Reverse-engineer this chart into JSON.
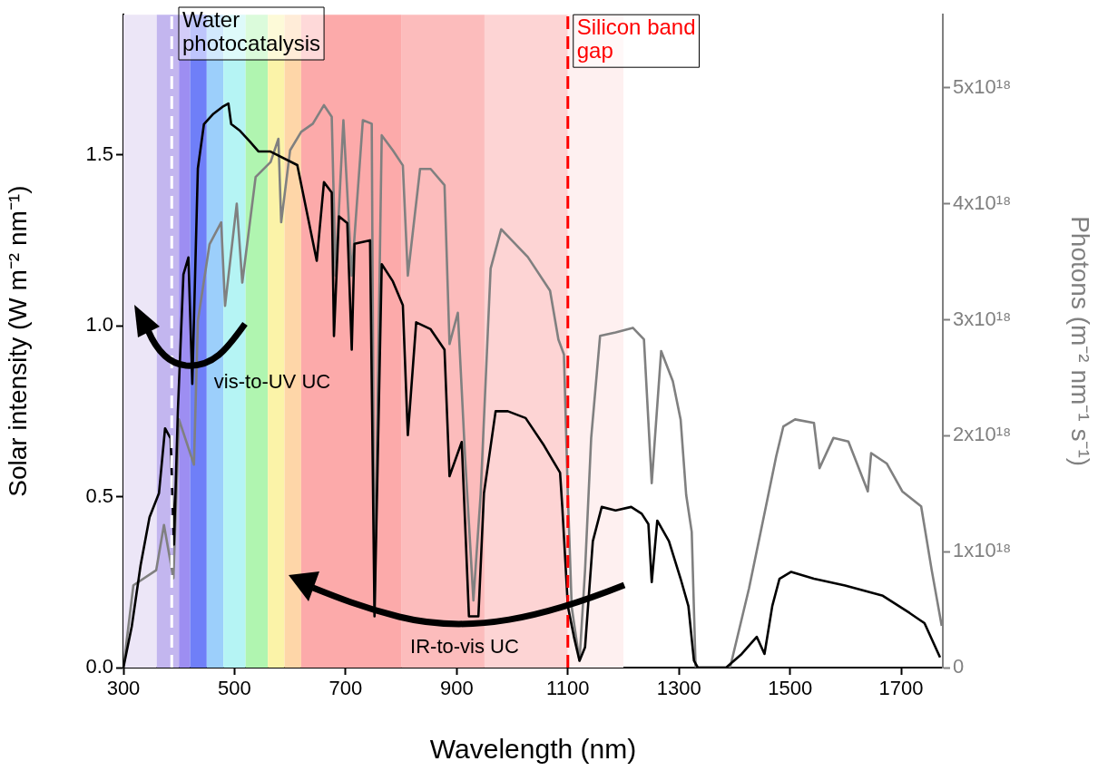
{
  "chart_data": {
    "type": "line",
    "xlabel": "Wavelength (nm)",
    "ylabel": "Solar intensity (W m⁻² nm⁻¹)",
    "y2label": "Photons (m⁻² nm⁻¹ s⁻¹)",
    "xlim": [
      300,
      1775
    ],
    "xticks": [
      300,
      500,
      700,
      900,
      1100,
      1300,
      1500,
      1700
    ],
    "ylim": [
      0,
      1.91
    ],
    "yticks": [
      {
        "value": 0,
        "label": "0.0"
      },
      0.5,
      {
        "value": 1,
        "label": "1.0"
      },
      1.5
    ],
    "y2lim": [
      0,
      5.63e+18
    ],
    "y2ticks": [
      0,
      {
        "value": 1e+18,
        "label": "1x10¹⁸"
      },
      {
        "value": 2e+18,
        "label": "2x10¹⁸"
      },
      {
        "value": 3e+18,
        "label": "3x10¹⁸"
      },
      {
        "value": 4e+18,
        "label": "4x10¹⁸"
      },
      {
        "value": 5e+18,
        "label": "5x10¹⁸"
      }
    ],
    "grid": false,
    "legend": false,
    "marker": "none",
    "line_style": "solid",
    "series": [
      {
        "color": "#000000",
        "x": [
          300,
          315,
          331,
          347,
          364,
          375,
          385,
          391,
          398,
          408,
          417,
          424,
          434,
          445,
          462,
          478,
          489,
          494,
          510,
          527,
          543,
          564,
          613,
          648,
          661,
          675,
          679,
          688,
          703,
          711,
          716,
          744,
          752,
          765,
          785,
          803,
          812,
          827,
          853,
          878,
          887,
          909,
          922,
          939,
          949,
          970,
          992,
          1024,
          1057,
          1086,
          1090,
          1100,
          1111,
          1121,
          1131,
          1145,
          1161,
          1186,
          1214,
          1233,
          1245,
          1251,
          1261,
          1282,
          1303,
          1317,
          1327,
          1334,
          1385,
          1413,
          1440,
          1454,
          1468,
          1481,
          1502,
          1543,
          1599,
          1667,
          1715,
          1742,
          1770
        ],
        "values": [
          0,
          0.12,
          0.3,
          0.44,
          0.51,
          0.7,
          0.67,
          0.36,
          0.75,
          1.15,
          1.2,
          0.83,
          1.46,
          1.59,
          1.62,
          1.64,
          1.65,
          1.59,
          1.57,
          1.54,
          1.51,
          1.51,
          1.47,
          1.19,
          1.42,
          1.39,
          0.97,
          1.32,
          1.3,
          0.93,
          1.24,
          1.25,
          0.15,
          1.18,
          1.13,
          1.06,
          0.68,
          1.01,
          0.99,
          0.93,
          0.56,
          0.66,
          0.15,
          0.15,
          0.51,
          0.75,
          0.75,
          0.73,
          0.65,
          0.57,
          0.47,
          0.18,
          0.09,
          0.02,
          0.06,
          0.37,
          0.47,
          0.46,
          0.47,
          0.45,
          0.42,
          0.25,
          0.43,
          0.37,
          0.26,
          0.18,
          0.02,
          0,
          0,
          0.04,
          0.09,
          0.04,
          0.18,
          0.26,
          0.28,
          0.26,
          0.24,
          0.21,
          0.16,
          0.13,
          0.03
        ]
      },
      {
        "color": "#808080",
        "axis": "y2",
        "x": [
          300,
          318,
          359,
          373,
          390,
          400,
          427,
          434,
          455,
          476,
          483,
          504,
          514,
          538,
          565,
          579,
          584,
          600,
          620,
          641,
          661,
          675,
          682,
          696,
          711,
          731,
          747,
          752,
          765,
          785,
          803,
          812,
          834,
          853,
          878,
          887,
          902,
          915,
          930,
          943,
          961,
          980,
          1028,
          1068,
          1083,
          1093,
          1100,
          1107,
          1121,
          1131,
          1142,
          1158,
          1186,
          1217,
          1237,
          1251,
          1268,
          1289,
          1303,
          1313,
          1323,
          1330,
          1392,
          1426,
          1454,
          1475,
          1488,
          1509,
          1543,
          1553,
          1578,
          1605,
          1640,
          1646,
          1674,
          1702,
          1736,
          1755,
          1773
        ],
        "values": [
          0,
          7.1e+17,
          8.4e+17,
          1.23e+18,
          7.7e+17,
          2.14e+18,
          1.75e+18,
          2.99e+18,
          3.65e+18,
          3.84e+18,
          3.12e+18,
          4e+18,
          3.32e+18,
          4.23e+18,
          4.36e+18,
          4.56e+18,
          3.84e+18,
          4.46e+18,
          4.62e+18,
          4.69e+18,
          4.85e+18,
          4.75e+18,
          3.38e+18,
          4.72e+18,
          3.38e+18,
          4.72e+18,
          4.69e+18,
          5.1e+17,
          4.59e+18,
          4.46e+18,
          4.33e+18,
          3.38e+18,
          4.3e+18,
          4.3e+18,
          4.16e+18,
          2.79e+18,
          3.06e+18,
          1.82e+18,
          5.8e+17,
          1.49e+18,
          3.44e+18,
          3.78e+18,
          3.54e+18,
          3.25e+18,
          2.83e+18,
          2.7e+18,
          1.49e+18,
          5.2e+17,
          6e+16,
          8.4e+17,
          1.98e+18,
          2.86e+18,
          2.89e+18,
          2.93e+18,
          2.83e+18,
          1.59e+18,
          2.73e+18,
          2.47e+18,
          2.14e+18,
          1.49e+18,
          1.17e+18,
          0,
          0,
          6.8e+17,
          1.33e+18,
          1.82e+18,
          2.08e+18,
          2.14e+18,
          2.11e+18,
          1.72e+18,
          1.98e+18,
          1.95e+18,
          1.52e+18,
          1.85e+18,
          1.76e+18,
          1.52e+18,
          1.39e+18,
          8.4e+17,
          3.6e+17
        ]
      }
    ],
    "bands": [
      {
        "axis": "x",
        "from": 300,
        "to": 360,
        "color": "#ece6f7"
      },
      {
        "axis": "x",
        "from": 360,
        "to": 400,
        "color": "#c3b6ef"
      },
      {
        "axis": "x",
        "from": 400,
        "to": 420,
        "color": "#9d8ef2"
      },
      {
        "axis": "x",
        "from": 420,
        "to": 450,
        "color": "#6f7ff8"
      },
      {
        "axis": "x",
        "from": 450,
        "to": 480,
        "color": "#9ccffb"
      },
      {
        "axis": "x",
        "from": 480,
        "to": 520,
        "color": "#b5f4f4"
      },
      {
        "axis": "x",
        "from": 520,
        "to": 560,
        "color": "#b0f5b0"
      },
      {
        "axis": "x",
        "from": 560,
        "to": 590,
        "color": "#fbf3a8"
      },
      {
        "axis": "x",
        "from": 590,
        "to": 620,
        "color": "#fed6a8"
      },
      {
        "axis": "x",
        "from": 620,
        "to": 800,
        "color": "#fcaaaa"
      },
      {
        "axis": "x",
        "from": 800,
        "to": 950,
        "color": "#fcbcbc"
      },
      {
        "axis": "x",
        "from": 950,
        "to": 1100,
        "color": "#fdd4d4"
      },
      {
        "axis": "x",
        "from": 1100,
        "to": 1200,
        "color": "#fef0f0"
      }
    ],
    "ref_lines": [
      {
        "axis": "x",
        "value": 387,
        "color": "#ffffff",
        "line_style": "dashed"
      },
      {
        "axis": "x",
        "value": 1100,
        "label": "Silicon band gap",
        "color": "#ff0000",
        "line_style": "dashed"
      }
    ],
    "annotations": [
      "Water photocatalysis",
      "vis-to-UV UC",
      "IR-to-vis UC"
    ]
  }
}
